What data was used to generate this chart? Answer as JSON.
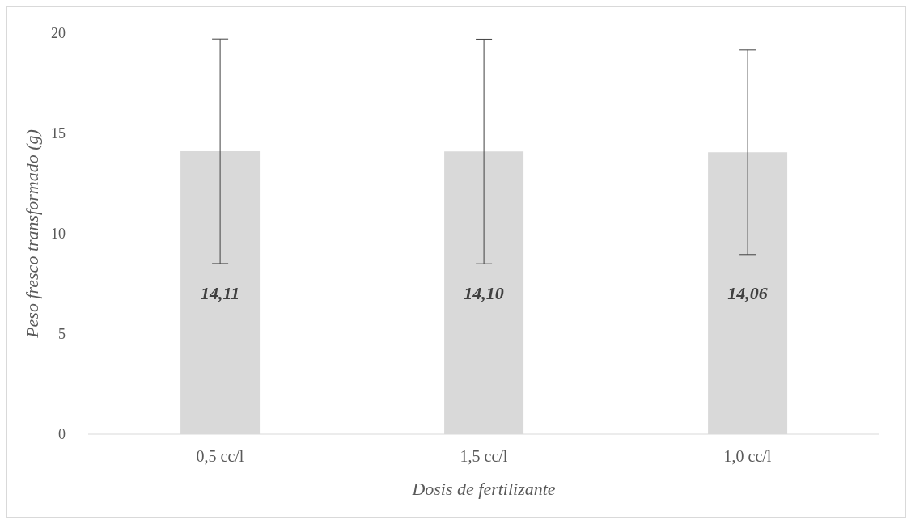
{
  "chart_data": {
    "type": "bar",
    "xlabel": "Dosis de fertilizante",
    "ylabel": "Peso fresco transformado (g)",
    "categories": [
      "0,5 cc/l",
      "1,5 cc/l",
      "1,0 cc/l"
    ],
    "values": [
      14.11,
      14.1,
      14.06
    ],
    "color": "#d9d9d9",
    "errors": [
      5.6,
      5.6,
      5.1
    ],
    "value_labels": [
      "14,11",
      "14,10",
      "14,06"
    ],
    "ylim": [
      0,
      20
    ],
    "yticks": [
      0,
      5,
      10,
      15,
      20
    ],
    "grid": false,
    "legend": false
  }
}
